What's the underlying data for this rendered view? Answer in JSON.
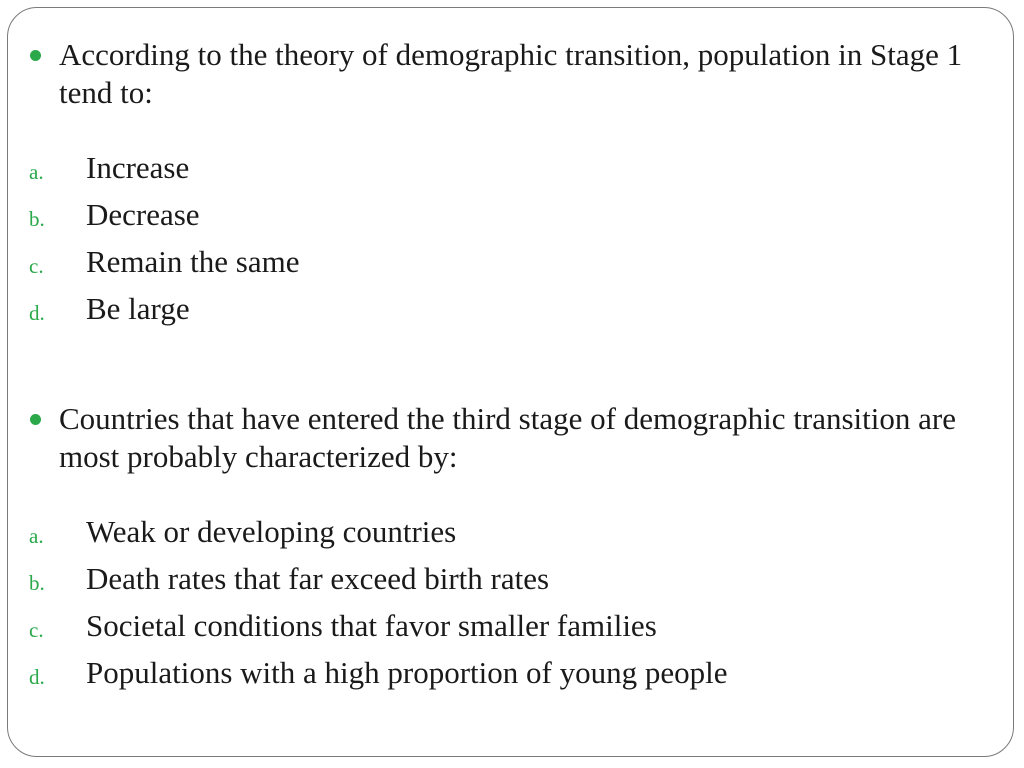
{
  "questions": [
    {
      "stem": "According to the theory of demographic transition, population in Stage 1 tend to:",
      "options": [
        {
          "letter": "a.",
          "text": "Increase"
        },
        {
          "letter": "b.",
          "text": "Decrease"
        },
        {
          "letter": "c.",
          "text": "Remain the same"
        },
        {
          "letter": "d.",
          "text": "Be large"
        }
      ]
    },
    {
      "stem": "Countries that have entered the third stage of demographic transition are most probably characterized by:",
      "options": [
        {
          "letter": "a.",
          "text": "Weak or developing countries"
        },
        {
          "letter": "b.",
          "text": "Death rates that far exceed birth rates"
        },
        {
          "letter": "c.",
          "text": "Societal conditions that favor smaller families"
        },
        {
          "letter": "d.",
          "text": "Populations with a high proportion of young people"
        }
      ]
    }
  ],
  "colors": {
    "accent": "#2aa84a",
    "text": "#1a1a1a",
    "border": "#7a7a7a"
  }
}
